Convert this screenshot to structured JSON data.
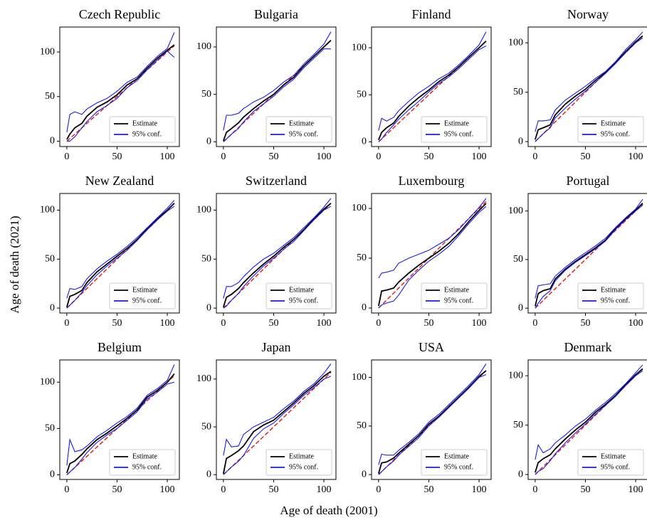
{
  "x_label": "Age of death (2001)",
  "y_label": "Age of death (2021)",
  "chart_data": [
    {
      "type": "line",
      "title": "Czech Republic",
      "x": [
        0,
        3,
        8,
        15,
        20,
        30,
        40,
        50,
        60,
        70,
        80,
        90,
        100,
        107
      ],
      "xlim": [
        -7,
        112
      ],
      "xticks": [
        0,
        50,
        100
      ],
      "ylim": [
        -6,
        128
      ],
      "yticks": [
        0,
        50,
        100
      ],
      "legend": "lower right",
      "reference": {
        "x": [
          0,
          107
        ],
        "values": [
          0,
          107
        ],
        "color": "#e8201c"
      },
      "series": [
        {
          "name": "Estimate",
          "color": "#000000",
          "values": [
            2,
            8,
            15,
            20,
            28,
            38,
            44,
            52,
            63,
            70,
            82,
            93,
            102,
            108
          ]
        },
        {
          "name": "95% conf.",
          "color": "#1a1aee",
          "lower": [
            0,
            0,
            5,
            15,
            22,
            33,
            40,
            48,
            60,
            68,
            80,
            91,
            101,
            94
          ],
          "upper": [
            10,
            30,
            33,
            30,
            36,
            43,
            48,
            56,
            66,
            72,
            84,
            95,
            104,
            122
          ]
        }
      ]
    },
    {
      "type": "line",
      "title": "Bulgaria",
      "x": [
        0,
        3,
        8,
        15,
        20,
        30,
        40,
        50,
        60,
        70,
        80,
        90,
        100,
        107
      ],
      "xlim": [
        -7,
        112
      ],
      "xticks": [
        0,
        50,
        100
      ],
      "ylim": [
        -5,
        121
      ],
      "yticks": [
        0,
        50,
        100
      ],
      "legend": "lower right",
      "reference": {
        "x": [
          0,
          107
        ],
        "values": [
          0,
          107
        ],
        "color": "#e8201c"
      },
      "series": [
        {
          "name": "Estimate",
          "color": "#000000",
          "values": [
            1,
            10,
            14,
            20,
            26,
            35,
            43,
            50,
            60,
            68,
            80,
            90,
            100,
            107
          ]
        },
        {
          "name": "95% conf.",
          "color": "#1a1aee",
          "lower": [
            0,
            3,
            8,
            14,
            21,
            32,
            40,
            48,
            58,
            66,
            78,
            88,
            98,
            98
          ],
          "upper": [
            12,
            28,
            28,
            30,
            35,
            42,
            47,
            54,
            63,
            70,
            82,
            92,
            103,
            116
          ]
        }
      ]
    },
    {
      "type": "line",
      "title": "Finland",
      "x": [
        0,
        3,
        8,
        15,
        20,
        30,
        40,
        50,
        60,
        70,
        80,
        90,
        100,
        107
      ],
      "xlim": [
        -7,
        112
      ],
      "xticks": [
        0,
        50,
        100
      ],
      "ylim": [
        -5,
        122
      ],
      "yticks": [
        0,
        50,
        100
      ],
      "legend": "lower right",
      "reference": {
        "x": [
          0,
          107
        ],
        "values": [
          0,
          107
        ],
        "color": "#e8201c"
      },
      "series": [
        {
          "name": "Estimate",
          "color": "#000000",
          "values": [
            2,
            10,
            15,
            20,
            27,
            38,
            47,
            55,
            64,
            71,
            80,
            90,
            100,
            107
          ]
        },
        {
          "name": "95% conf.",
          "color": "#1a1aee",
          "lower": [
            0,
            3,
            10,
            18,
            24,
            34,
            43,
            53,
            62,
            69,
            78,
            88,
            98,
            102
          ],
          "upper": [
            12,
            25,
            22,
            26,
            33,
            43,
            52,
            59,
            67,
            73,
            82,
            92,
            103,
            117
          ]
        }
      ]
    },
    {
      "type": "line",
      "title": "Norway",
      "x": [
        0,
        3,
        8,
        15,
        20,
        30,
        40,
        50,
        60,
        70,
        80,
        90,
        100,
        107
      ],
      "xlim": [
        -7,
        112
      ],
      "xticks": [
        0,
        50,
        100
      ],
      "ylim": [
        -5,
        116
      ],
      "yticks": [
        0,
        50,
        100
      ],
      "legend": "lower right",
      "reference": {
        "x": [
          0,
          107
        ],
        "values": [
          0,
          107
        ],
        "color": "#e8201c"
      },
      "series": [
        {
          "name": "Estimate",
          "color": "#000000",
          "values": [
            2,
            12,
            14,
            17,
            27,
            38,
            46,
            53,
            62,
            70,
            80,
            91,
            101,
            107
          ]
        },
        {
          "name": "95% conf.",
          "color": "#1a1aee",
          "lower": [
            0,
            3,
            8,
            14,
            24,
            34,
            43,
            51,
            60,
            69,
            79,
            90,
            100,
            105
          ],
          "upper": [
            10,
            21,
            21,
            22,
            32,
            42,
            49,
            56,
            64,
            71,
            81,
            93,
            103,
            111
          ]
        }
      ]
    },
    {
      "type": "line",
      "title": "New Zealand",
      "x": [
        0,
        3,
        8,
        15,
        20,
        30,
        40,
        50,
        60,
        70,
        80,
        90,
        100,
        107
      ],
      "xlim": [
        -7,
        112
      ],
      "xticks": [
        0,
        50,
        100
      ],
      "ylim": [
        -5,
        117
      ],
      "yticks": [
        0,
        50,
        100
      ],
      "legend": "lower right",
      "reference": {
        "x": [
          0,
          107
        ],
        "values": [
          0,
          107
        ],
        "color": "#e8201c"
      },
      "series": [
        {
          "name": "Estimate",
          "color": "#000000",
          "values": [
            1,
            12,
            14,
            18,
            26,
            37,
            45,
            53,
            61,
            70,
            81,
            91,
            100,
            107
          ]
        },
        {
          "name": "95% conf.",
          "color": "#1a1aee",
          "lower": [
            0,
            3,
            8,
            16,
            23,
            34,
            43,
            51,
            59,
            69,
            80,
            90,
            99,
            104
          ],
          "upper": [
            10,
            20,
            19,
            22,
            30,
            40,
            48,
            55,
            63,
            72,
            82,
            92,
            102,
            110
          ]
        }
      ]
    },
    {
      "type": "line",
      "title": "Switzerland",
      "x": [
        0,
        3,
        8,
        15,
        20,
        30,
        40,
        50,
        60,
        70,
        80,
        90,
        100,
        107
      ],
      "xlim": [
        -7,
        112
      ],
      "xticks": [
        0,
        50,
        100
      ],
      "ylim": [
        -5,
        117
      ],
      "yticks": [
        0,
        50,
        100
      ],
      "legend": "lower right",
      "reference": {
        "x": [
          0,
          107
        ],
        "values": [
          0,
          107
        ],
        "color": "#e8201c"
      },
      "series": [
        {
          "name": "Estimate",
          "color": "#000000",
          "values": [
            1,
            11,
            14,
            20,
            26,
            36,
            45,
            53,
            62,
            70,
            80,
            91,
            101,
            107
          ]
        },
        {
          "name": "95% conf.",
          "color": "#1a1aee",
          "lower": [
            0,
            2,
            8,
            15,
            22,
            33,
            43,
            51,
            60,
            68,
            79,
            90,
            100,
            104
          ],
          "upper": [
            10,
            22,
            22,
            26,
            32,
            42,
            50,
            56,
            64,
            72,
            82,
            92,
            103,
            112
          ]
        }
      ]
    },
    {
      "type": "line",
      "title": "Luxembourg",
      "x": [
        0,
        3,
        8,
        15,
        20,
        30,
        40,
        50,
        60,
        70,
        80,
        90,
        100,
        107
      ],
      "xlim": [
        -7,
        112
      ],
      "xticks": [
        0,
        50,
        100
      ],
      "ylim": [
        -5,
        115
      ],
      "yticks": [
        0,
        50,
        100
      ],
      "legend": "lower right",
      "reference": {
        "x": [
          0,
          107
        ],
        "values": [
          0,
          107
        ],
        "color": "#e8201c"
      },
      "series": [
        {
          "name": "Estimate",
          "color": "#000000",
          "values": [
            2,
            17,
            18,
            20,
            26,
            35,
            43,
            50,
            57,
            65,
            75,
            87,
            98,
            105
          ]
        },
        {
          "name": "95% conf.",
          "color": "#1a1aee",
          "lower": [
            0,
            3,
            5,
            7,
            13,
            28,
            38,
            47,
            54,
            62,
            73,
            85,
            96,
            102
          ],
          "upper": [
            30,
            35,
            36,
            38,
            45,
            50,
            54,
            58,
            64,
            70,
            79,
            90,
            101,
            110
          ]
        }
      ]
    },
    {
      "type": "line",
      "title": "Portugal",
      "x": [
        0,
        3,
        8,
        15,
        20,
        30,
        40,
        50,
        60,
        70,
        80,
        90,
        100,
        107
      ],
      "xlim": [
        -7,
        112
      ],
      "xticks": [
        0,
        50,
        100
      ],
      "ylim": [
        -5,
        118
      ],
      "yticks": [
        0,
        50,
        100
      ],
      "legend": "lower right",
      "reference": {
        "x": [
          0,
          107
        ],
        "values": [
          0,
          107
        ],
        "color": "#e8201c"
      },
      "series": [
        {
          "name": "Estimate",
          "color": "#000000",
          "values": [
            2,
            15,
            18,
            20,
            30,
            40,
            48,
            55,
            62,
            70,
            82,
            92,
            101,
            108
          ]
        },
        {
          "name": "95% conf.",
          "color": "#1a1aee",
          "lower": [
            0,
            5,
            12,
            18,
            28,
            39,
            47,
            54,
            61,
            69,
            81,
            91,
            100,
            106
          ],
          "upper": [
            10,
            23,
            24,
            25,
            33,
            42,
            50,
            57,
            64,
            72,
            83,
            93,
            102,
            112
          ]
        }
      ]
    },
    {
      "type": "line",
      "title": "Belgium",
      "x": [
        0,
        3,
        8,
        15,
        20,
        30,
        40,
        50,
        60,
        70,
        80,
        90,
        100,
        107
      ],
      "xlim": [
        -7,
        112
      ],
      "xticks": [
        0,
        50,
        100
      ],
      "ylim": [
        -5,
        124
      ],
      "yticks": [
        0,
        50,
        100
      ],
      "legend": "lower right",
      "reference": {
        "x": [
          0,
          107
        ],
        "values": [
          0,
          107
        ],
        "color": "#e8201c"
      },
      "series": [
        {
          "name": "Estimate",
          "color": "#000000",
          "values": [
            2,
            12,
            15,
            22,
            28,
            38,
            45,
            53,
            61,
            70,
            84,
            91,
            100,
            109
          ]
        },
        {
          "name": "95% conf.",
          "color": "#1a1aee",
          "lower": [
            0,
            3,
            8,
            17,
            24,
            35,
            43,
            50,
            59,
            68,
            82,
            89,
            98,
            100
          ],
          "upper": [
            10,
            38,
            25,
            27,
            31,
            41,
            48,
            56,
            63,
            72,
            86,
            93,
            102,
            119
          ]
        }
      ]
    },
    {
      "type": "line",
      "title": "Japan",
      "x": [
        0,
        3,
        8,
        15,
        20,
        30,
        40,
        50,
        60,
        70,
        80,
        90,
        100,
        107
      ],
      "xlim": [
        -7,
        112
      ],
      "xticks": [
        0,
        50,
        100
      ],
      "ylim": [
        -5,
        120
      ],
      "yticks": [
        0,
        50,
        100
      ],
      "legend": "lower right",
      "reference": {
        "x": [
          0,
          107
        ],
        "values": [
          0,
          107
        ],
        "color": "#e8201c"
      },
      "series": [
        {
          "name": "Estimate",
          "color": "#000000",
          "values": [
            1,
            17,
            20,
            25,
            30,
            45,
            52,
            57,
            66,
            75,
            85,
            93,
            103,
            108
          ]
        },
        {
          "name": "95% conf.",
          "color": "#1a1aee",
          "lower": [
            0,
            3,
            8,
            14,
            20,
            38,
            48,
            54,
            64,
            73,
            83,
            91,
            100,
            103
          ],
          "upper": [
            20,
            37,
            29,
            30,
            42,
            50,
            55,
            60,
            69,
            77,
            87,
            95,
            106,
            116
          ]
        }
      ]
    },
    {
      "type": "line",
      "title": "USA",
      "x": [
        0,
        3,
        8,
        15,
        20,
        30,
        40,
        50,
        60,
        70,
        80,
        90,
        100,
        107
      ],
      "xlim": [
        -7,
        112
      ],
      "xticks": [
        0,
        50,
        100
      ],
      "ylim": [
        -5,
        118
      ],
      "yticks": [
        0,
        50,
        100
      ],
      "legend": "lower right",
      "reference": {
        "x": [
          0,
          107
        ],
        "values": [
          0,
          107
        ],
        "color": "#e8201c"
      },
      "series": [
        {
          "name": "Estimate",
          "color": "#000000",
          "values": [
            1,
            12,
            13,
            17,
            22,
            31,
            40,
            52,
            60,
            70,
            80,
            90,
            101,
            107
          ]
        },
        {
          "name": "95% conf.",
          "color": "#1a1aee",
          "lower": [
            0,
            3,
            8,
            14,
            20,
            29,
            38,
            50,
            59,
            69,
            79,
            89,
            100,
            103
          ],
          "upper": [
            10,
            21,
            20,
            20,
            25,
            33,
            42,
            54,
            62,
            72,
            82,
            92,
            103,
            114
          ]
        }
      ]
    },
    {
      "type": "line",
      "title": "Denmark",
      "x": [
        0,
        3,
        8,
        15,
        20,
        30,
        40,
        50,
        60,
        70,
        80,
        90,
        100,
        107
      ],
      "xlim": [
        -7,
        112
      ],
      "xticks": [
        0,
        50,
        100
      ],
      "ylim": [
        -5,
        116
      ],
      "yticks": [
        0,
        50,
        100
      ],
      "legend": "lower right",
      "reference": {
        "x": [
          0,
          107
        ],
        "values": [
          0,
          107
        ],
        "color": "#e8201c"
      },
      "series": [
        {
          "name": "Estimate",
          "color": "#000000",
          "values": [
            2,
            12,
            16,
            20,
            26,
            36,
            45,
            53,
            63,
            71,
            80,
            91,
            101,
            107
          ]
        },
        {
          "name": "95% conf.",
          "color": "#1a1aee",
          "lower": [
            0,
            3,
            6,
            14,
            21,
            32,
            42,
            51,
            61,
            70,
            79,
            90,
            100,
            105
          ],
          "upper": [
            15,
            30,
            22,
            26,
            32,
            40,
            49,
            56,
            65,
            73,
            82,
            92,
            103,
            111
          ]
        }
      ]
    }
  ]
}
